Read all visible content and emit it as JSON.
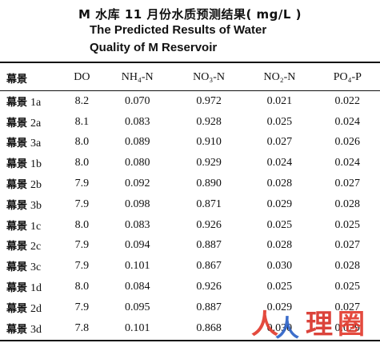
{
  "title": {
    "chinese": "M 水库 11 月份水质预测结果( mg/L )",
    "english_line1": "The Predicted Results of Water",
    "english_line2": "Quality of M Reservoir"
  },
  "table": {
    "headers": [
      "幕景",
      "DO",
      "NH₄-N",
      "NO₃-N",
      "NO₂-N",
      "PO₄-P"
    ],
    "rows": [
      {
        "scene": "幕景",
        "mark": "1a",
        "values": [
          "8.2",
          "0.070",
          "0.972",
          "0.021",
          "0.022"
        ]
      },
      {
        "scene": "幕景",
        "mark": "2a",
        "values": [
          "8.1",
          "0.083",
          "0.928",
          "0.025",
          "0.024"
        ]
      },
      {
        "scene": "幕景",
        "mark": "3a",
        "values": [
          "8.0",
          "0.089",
          "0.910",
          "0.027",
          "0.026"
        ]
      },
      {
        "scene": "幕景",
        "mark": "1b",
        "values": [
          "8.0",
          "0.080",
          "0.929",
          "0.024",
          "0.024"
        ]
      },
      {
        "scene": "幕景",
        "mark": "2b",
        "values": [
          "7.9",
          "0.092",
          "0.890",
          "0.028",
          "0.027"
        ]
      },
      {
        "scene": "幕景",
        "mark": "3b",
        "values": [
          "7.9",
          "0.098",
          "0.871",
          "0.029",
          "0.028"
        ]
      },
      {
        "scene": "幕景",
        "mark": "1c",
        "values": [
          "8.0",
          "0.083",
          "0.926",
          "0.025",
          "0.025"
        ]
      },
      {
        "scene": "幕景",
        "mark": "2c",
        "values": [
          "7.9",
          "0.094",
          "0.887",
          "0.028",
          "0.027"
        ]
      },
      {
        "scene": "幕景",
        "mark": "3c",
        "values": [
          "7.9",
          "0.101",
          "0.867",
          "0.030",
          "0.028"
        ]
      },
      {
        "scene": "幕景",
        "mark": "1d",
        "values": [
          "8.0",
          "0.084",
          "0.926",
          "0.025",
          "0.025"
        ]
      },
      {
        "scene": "幕景",
        "mark": "2d",
        "values": [
          "7.9",
          "0.095",
          "0.887",
          "0.029",
          "0.027"
        ]
      },
      {
        "scene": "幕景",
        "mark": "3d",
        "values": [
          "7.8",
          "0.101",
          "0.868",
          "0.030",
          "0.029"
        ]
      }
    ]
  },
  "watermark": {
    "glyphs": [
      "人",
      "人",
      "理",
      "圈"
    ],
    "colors": [
      "#e23b2e",
      "#2d62c7",
      "#d9342b",
      "#e23b2e"
    ]
  }
}
